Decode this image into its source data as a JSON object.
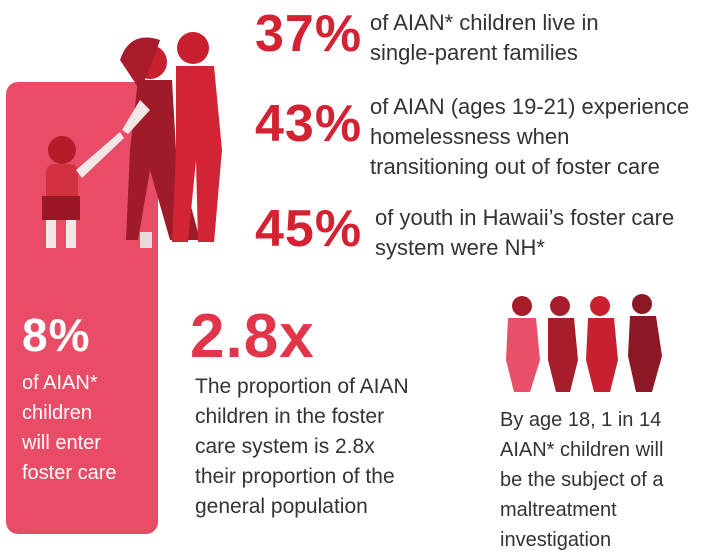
{
  "stats": [
    {
      "figure": "37%",
      "text": [
        "of AIAN* children live in",
        "single-parent families"
      ]
    },
    {
      "figure": "43%",
      "text": [
        "of AIAN (ages 19-21) experience",
        "homelessness when",
        "transitioning out of foster care"
      ]
    },
    {
      "figure": "45%",
      "text": [
        "of youth in Hawaii’s foster care",
        "system were NH*"
      ]
    }
  ],
  "callout": {
    "figure": "8%",
    "text": [
      "of AIAN*",
      "children",
      "will enter",
      "foster care"
    ]
  },
  "ratio": {
    "figure": "2.8x",
    "text": [
      "The proportion of AIAN",
      "children in the foster",
      "care system is 2.8x",
      "their proportion of the",
      "general population"
    ]
  },
  "maltreatment": {
    "text": [
      "By age 18, 1 in 14",
      "AIAN* children will",
      "be the subject of a",
      "maltreatment",
      "investigation"
    ]
  }
}
